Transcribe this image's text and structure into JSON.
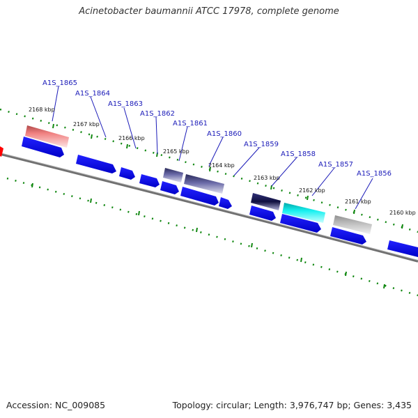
{
  "title": "Acinetobacter baumannii ATCC 17978, complete genome",
  "footer": {
    "accession": "Accession: NC_009085",
    "topology": "Topology: circular; Length: 3,976,747 bp; Genes: 3,435"
  },
  "scale_labels": [
    "2168 kbp",
    "2167 kbp",
    "2166 kbp",
    "2165 kbp",
    "2164 kbp",
    "2163 kbp",
    "2162 kbp",
    "2161 kbp",
    "2160 kbp"
  ],
  "gene_labels": [
    "A1S_1865",
    "A1S_1864",
    "A1S_1863",
    "A1S_1862",
    "A1S_1861",
    "A1S_1860",
    "A1S_1859",
    "A1S_1858",
    "A1S_1857",
    "A1S_1856"
  ],
  "colors": {
    "backbone": "#888888",
    "cds": "#0000ee",
    "ticks": "#118811",
    "label": "#1a1ab8",
    "highlight_red": "#e06b6b",
    "highlight_cyan": "#11e6e6",
    "highlight_gray": "#aaaaaa",
    "highlight_navy": "#44447a"
  }
}
